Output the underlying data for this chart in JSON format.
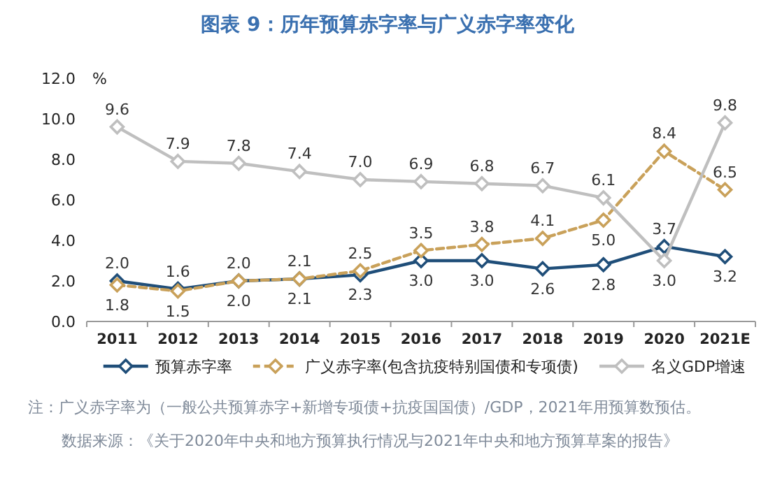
{
  "chart_data": {
    "type": "line",
    "title": "图表 9：历年预算赤字率与广义赤字率变化",
    "ylabel": "%",
    "categories": [
      "2011",
      "2012",
      "2013",
      "2014",
      "2015",
      "2016",
      "2017",
      "2018",
      "2019",
      "2020",
      "2021E"
    ],
    "ylim": [
      0,
      12
    ],
    "yticks": [
      {
        "value": 0,
        "label": "0.0"
      },
      {
        "value": 2,
        "label": "2.0"
      },
      {
        "value": 4,
        "label": "4.0"
      },
      {
        "value": 6,
        "label": "6.0"
      },
      {
        "value": 8,
        "label": "8.0"
      },
      {
        "value": 10,
        "label": "10.0"
      },
      {
        "value": 12,
        "label": "12.0"
      }
    ],
    "series": [
      {
        "name": "预算赤字率",
        "color": "#1f4e79",
        "line_style": "solid",
        "values": [
          2.0,
          1.6,
          2.0,
          2.1,
          2.3,
          3.0,
          3.0,
          2.6,
          2.8,
          3.7,
          3.2
        ],
        "value_labels": [
          "2.0",
          "1.6",
          "2.0",
          "2.1",
          "2.3",
          "3.0",
          "3.0",
          "2.6",
          "2.8",
          "3.7",
          "3.2"
        ]
      },
      {
        "name": "广义赤字率(包含抗疫特别国债和专项债)",
        "color": "#c9a15a",
        "line_style": "dashed",
        "values": [
          1.8,
          1.5,
          2.0,
          2.1,
          2.5,
          3.5,
          3.8,
          4.1,
          5.0,
          8.4,
          6.5
        ],
        "value_labels": [
          "1.8",
          "1.5",
          "2.0",
          "2.1",
          "2.5",
          "3.5",
          "3.8",
          "4.1",
          "5.0",
          "8.4",
          "6.5"
        ]
      },
      {
        "name": "名义GDP增速",
        "color": "#bfbfbf",
        "line_style": "solid",
        "values": [
          9.6,
          7.9,
          7.8,
          7.4,
          7.0,
          6.9,
          6.8,
          6.7,
          6.1,
          3.0,
          9.8
        ],
        "value_labels": [
          "9.6",
          "7.9",
          "7.8",
          "7.4",
          "7.0",
          "6.9",
          "6.8",
          "6.7",
          "6.1",
          "3.0",
          "9.8"
        ]
      }
    ],
    "marker": "diamond",
    "legend": "bottom",
    "annotations": [
      "注：广义赤字率为（一般公共预算赤字+新增专项债+抗疫国国债）/GDP，2021年用预算数预估。",
      "数据来源：《关于2020年中央和地方预算执行情况与2021年中央和地方预算草案的报告》"
    ]
  }
}
